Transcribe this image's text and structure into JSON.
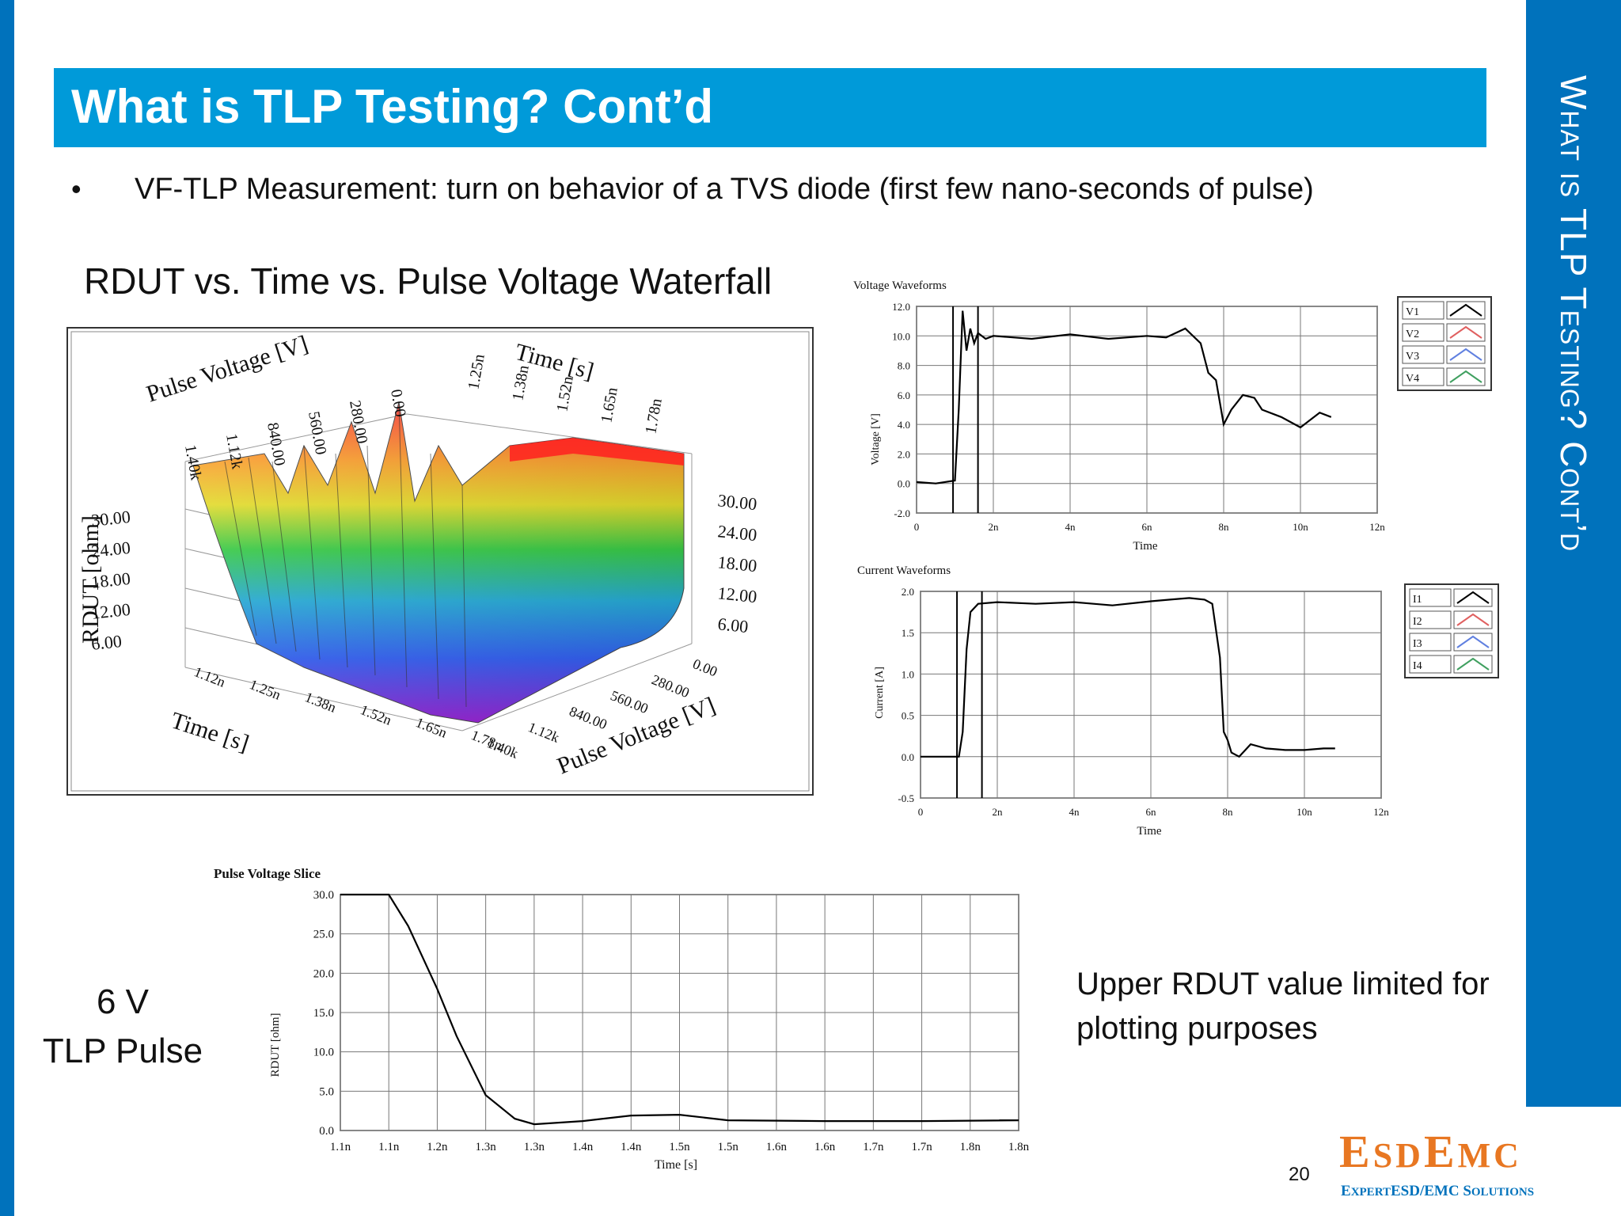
{
  "slide": {
    "title": "What is TLP Testing? Cont’d",
    "side_title": "What is TLP Testing? Cont’d",
    "bullet_symbol": "•",
    "bullet": "VF-TLP Measurement: turn on behavior of a TVS diode (first few nano-seconds of pulse)",
    "waterfall_title": "RDUT vs. Time vs. Pulse Voltage Waterfall",
    "pulse_label_line1": "6 V",
    "pulse_label_line2": "TLP Pulse",
    "note": "Upper RDUT value limited for plotting purposes",
    "page_number": "20",
    "logo": {
      "name": "EsdEmc",
      "tagline": "ExpertESD/EMC Solutions",
      "color": "#e87722",
      "tagline_color": "#0072bc"
    }
  },
  "colors": {
    "brand_blue": "#0072bc",
    "title_blue": "#009ad9"
  },
  "chart_data": [
    {
      "type": "surface",
      "title": "",
      "xlabel": "Time [s]",
      "ylabel": "RDUT [ohm]",
      "zlabel": "Pulse Voltage [V]",
      "x_ticks": [
        "1.12n",
        "1.25n",
        "1.38n",
        "1.52n",
        "1.65n",
        "1.78n"
      ],
      "x_ticks_back": [
        "1.25n",
        "1.38n",
        "1.52n",
        "1.65n",
        "1.78n"
      ],
      "z_ticks": [
        "1.40k",
        "1.12k",
        "840.00",
        "560.00",
        "280.00",
        "0.00"
      ],
      "y_ticks": [
        "6.00",
        "12.00",
        "18.00",
        "24.00",
        "30.00"
      ],
      "ylim": [
        0,
        30
      ]
    },
    {
      "type": "line",
      "title": "Voltage Waveforms",
      "xlabel": "Time",
      "ylabel": "Voltage [V]",
      "xlim": [
        0,
        12
      ],
      "ylim": [
        -2,
        12
      ],
      "x_ticks": [
        "0",
        "2n",
        "4n",
        "6n",
        "8n",
        "10n",
        "12n"
      ],
      "y_ticks": [
        "-2.0",
        "0.0",
        "2.0",
        "4.0",
        "6.0",
        "8.0",
        "10.0",
        "12.0"
      ],
      "legend": [
        "V1",
        "V2",
        "V3",
        "V4"
      ],
      "legend_colors": [
        "#000000",
        "#e06060",
        "#6080e0",
        "#40a060"
      ],
      "series": [
        {
          "name": "V1",
          "x": [
            0,
            0.5,
            1.0,
            1.1,
            1.2,
            1.3,
            1.4,
            1.5,
            1.6,
            1.8,
            2.0,
            3.0,
            4.0,
            5.0,
            6.0,
            6.5,
            7.0,
            7.2,
            7.4,
            7.6,
            7.8,
            8.0,
            8.2,
            8.5,
            8.8,
            9.0,
            9.5,
            10.0,
            10.5,
            10.8
          ],
          "y": [
            0.1,
            0.0,
            0.2,
            5.0,
            11.7,
            9.0,
            10.5,
            9.5,
            10.2,
            9.8,
            10.0,
            9.8,
            10.1,
            9.8,
            10.0,
            9.9,
            10.5,
            10.0,
            9.5,
            7.5,
            7.0,
            4.0,
            5.0,
            6.0,
            5.8,
            5.0,
            4.5,
            3.8,
            4.8,
            4.5
          ]
        }
      ]
    },
    {
      "type": "line",
      "title": "Current Waveforms",
      "xlabel": "Time",
      "ylabel": "Current [A]",
      "xlim": [
        0,
        12
      ],
      "ylim": [
        -0.5,
        2.0
      ],
      "x_ticks": [
        "0",
        "2n",
        "4n",
        "6n",
        "8n",
        "10n",
        "12n"
      ],
      "y_ticks": [
        "-0.5",
        "0.0",
        "0.5",
        "1.0",
        "1.5",
        "2.0"
      ],
      "legend": [
        "I1",
        "I2",
        "I3",
        "I4"
      ],
      "legend_colors": [
        "#000000",
        "#e06060",
        "#6080e0",
        "#40a060"
      ],
      "series": [
        {
          "name": "I1",
          "x": [
            0,
            0.5,
            1.0,
            1.1,
            1.2,
            1.3,
            1.5,
            2.0,
            3.0,
            4.0,
            5.0,
            6.0,
            6.5,
            7.0,
            7.4,
            7.6,
            7.8,
            7.9,
            8.0,
            8.1,
            8.3,
            8.6,
            9.0,
            9.5,
            10.0,
            10.5,
            10.8
          ],
          "y": [
            0.0,
            0.0,
            0.0,
            0.3,
            1.3,
            1.75,
            1.85,
            1.87,
            1.85,
            1.87,
            1.83,
            1.88,
            1.9,
            1.92,
            1.9,
            1.85,
            1.2,
            0.3,
            0.2,
            0.05,
            0.0,
            0.15,
            0.1,
            0.08,
            0.08,
            0.1,
            0.1
          ]
        }
      ]
    },
    {
      "type": "line",
      "title": "Pulse Voltage Slice",
      "xlabel": "Time [s]",
      "ylabel": "RDUT [ohm]",
      "xlim": [
        1.1,
        1.8
      ],
      "ylim": [
        0,
        30
      ],
      "x_ticks": [
        "1.1n",
        "1.1n",
        "1.2n",
        "1.3n",
        "1.3n",
        "1.4n",
        "1.4n",
        "1.5n",
        "1.5n",
        "1.6n",
        "1.6n",
        "1.7n",
        "1.7n",
        "1.8n",
        "1.8n"
      ],
      "y_ticks": [
        "0.0",
        "5.0",
        "10.0",
        "15.0",
        "20.0",
        "25.0",
        "30.0"
      ],
      "series": [
        {
          "name": "RDUT",
          "x": [
            1.1,
            1.15,
            1.17,
            1.2,
            1.22,
            1.25,
            1.28,
            1.3,
            1.35,
            1.4,
            1.45,
            1.5,
            1.6,
            1.7,
            1.8,
            1.78
          ],
          "y": [
            30,
            30,
            26,
            18,
            12,
            4.5,
            1.5,
            0.8,
            1.2,
            1.9,
            2.0,
            1.3,
            1.2,
            1.2,
            1.3,
            1.3
          ]
        }
      ]
    }
  ]
}
